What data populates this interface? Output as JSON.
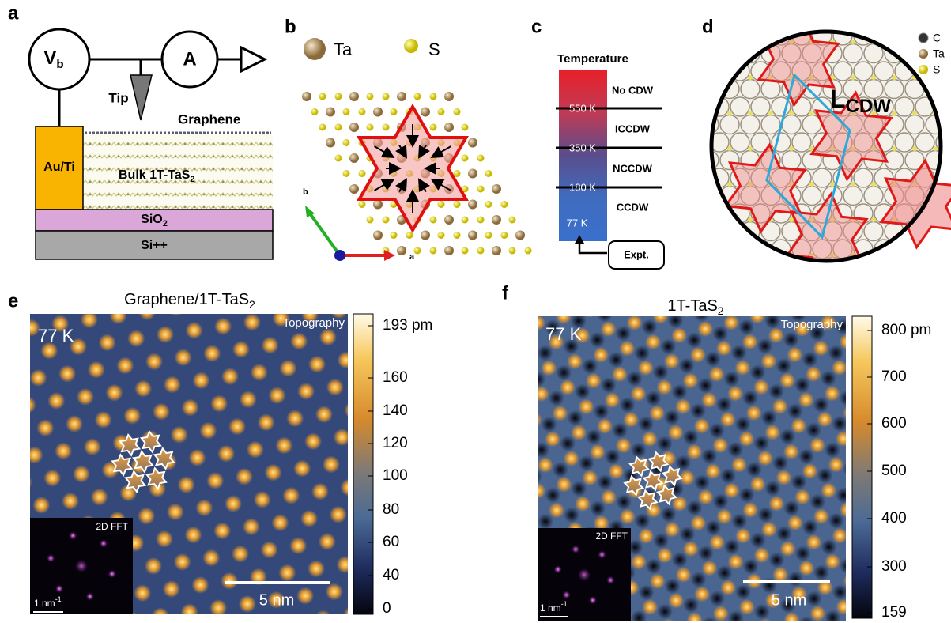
{
  "panels": {
    "a": {
      "label": "a",
      "voltage": "V",
      "voltage_sub": "b",
      "ammeter": "A",
      "tip": "Tip",
      "graphene": "Graphene",
      "contact": "Au/Ti",
      "bulk": "Bulk 1T-TaS",
      "bulk_sub": "2",
      "oxide": "SiO",
      "oxide_sub": "2",
      "substrate": "Si++"
    },
    "b": {
      "label": "b",
      "legend": [
        "Ta",
        "S"
      ],
      "axis_b": "b",
      "axis_a": "a"
    },
    "c": {
      "label": "c",
      "title": "Temperature",
      "phases": [
        "No CDW",
        "ICCDW",
        "NCCDW",
        "CCDW"
      ],
      "transitions": [
        "550 K",
        "350 K",
        "180 K"
      ],
      "experiment_temp": "77 K",
      "experiment": "Expt."
    },
    "d": {
      "label": "d",
      "legend": [
        "C",
        "Ta",
        "S"
      ],
      "period": "L",
      "period_sub": "CDW"
    },
    "e": {
      "label": "e",
      "title": "Graphene/1T-TaS",
      "title_sub": "2",
      "temperature": "77 K",
      "mode": "Topography",
      "fft": "2D FFT",
      "fft_scale": "1 nm",
      "fft_scale_sup": "-1",
      "scale_bar": "5 nm",
      "colorbar": [
        "193 pm",
        "160",
        "140",
        "120",
        "100",
        "80",
        "60",
        "40",
        "0"
      ]
    },
    "f": {
      "label": "f",
      "title": "1T-TaS",
      "title_sub": "2",
      "temperature": "77 K",
      "mode": "Topography",
      "fft": "2D FFT",
      "fft_scale": "1 nm",
      "fft_scale_sup": "-1",
      "scale_bar": "5 nm",
      "colorbar": [
        "800 pm",
        "700",
        "600",
        "500",
        "400",
        "300",
        "159"
      ]
    }
  }
}
